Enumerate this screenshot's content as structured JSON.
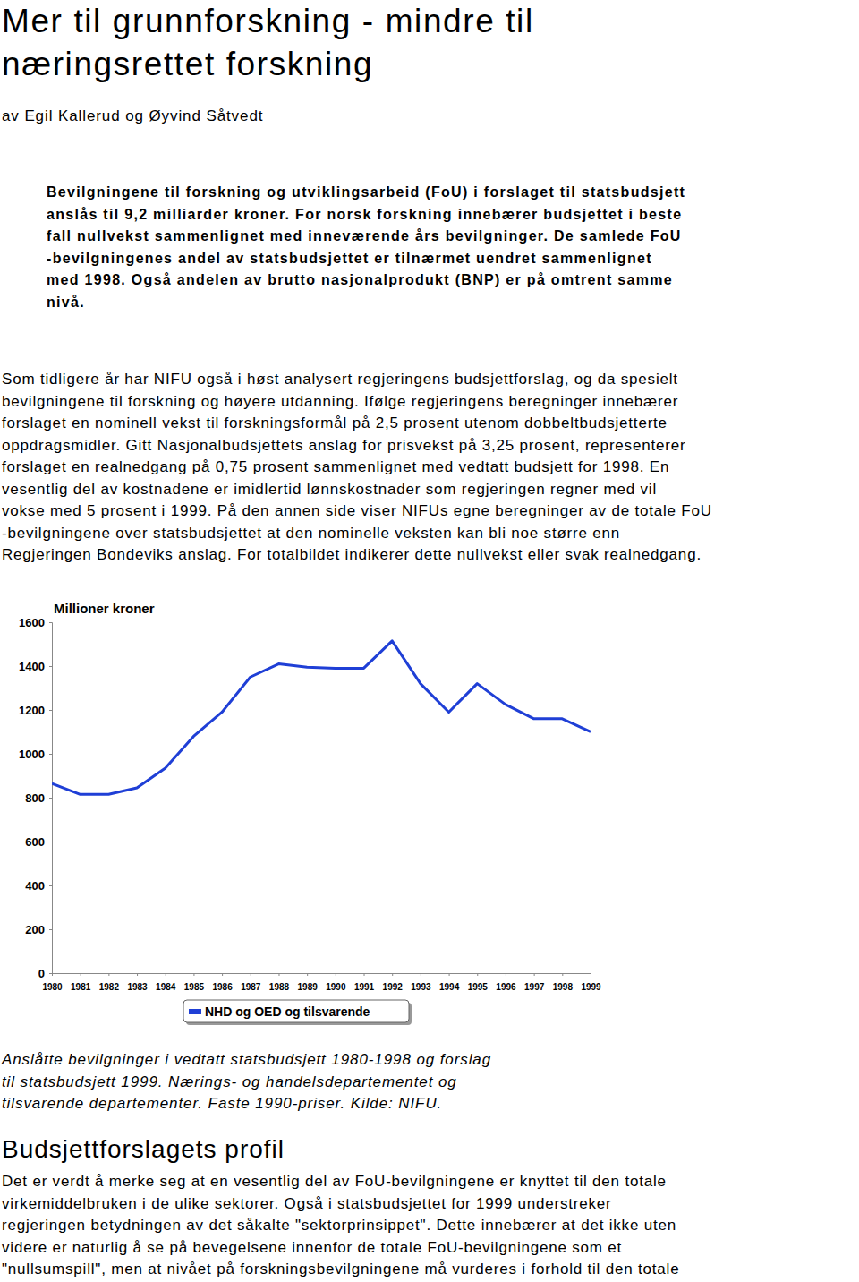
{
  "title_lines": [
    "Mer til grunnforskning - mindre til",
    "næringsrettet forskning"
  ],
  "byline": "av Egil Kallerud og Øyvind Såtvedt",
  "lead_lines": [
    "Bevilgningene til forskning og utviklingsarbeid (FoU) i forslaget til statsbudsjett",
    "anslås til 9,2 milliarder kroner. For norsk forskning innebærer budsjettet i beste",
    "fall nullvekst sammenlignet med inneværende års bevilgninger. De samlede FoU",
    "-bevilgningenes andel av statsbudsjettet er tilnærmet uendret sammenlignet",
    "med 1998. Også andelen av brutto nasjonalprodukt (BNP) er på omtrent samme",
    "nivå."
  ],
  "body_lines": [
    "Som tidligere år har NIFU også i høst analysert regjeringens budsjettforslag, og da spesielt",
    "bevilgningene til forskning og høyere utdanning. Ifølge regjeringens beregninger innebærer",
    "forslaget en nominell vekst til forskningsformål på 2,5 prosent utenom dobbeltbudsjetterte",
    "oppdragsmidler. Gitt Nasjonalbudsjettets anslag for prisvekst på 3,25 prosent, representerer",
    "forslaget en realnedgang på 0,75 prosent sammenlignet med vedtatt budsjett for 1998. En",
    "vesentlig del av kostnadene er imidlertid lønnskostnader som regjeringen regner med vil",
    "vokse med 5 prosent i 1999. På den annen side viser NIFUs egne beregninger av de totale FoU",
    "-bevilgningene over statsbudsjettet at den nominelle veksten kan bli noe større enn",
    "Regjeringen Bondeviks anslag. For totalbildet indikerer dette nullvekst eller svak realnedgang."
  ],
  "chart_data": {
    "type": "line",
    "title": "Millioner kroner",
    "categories": [
      "1980",
      "1981",
      "1982",
      "1983",
      "1984",
      "1985",
      "1986",
      "1987",
      "1988",
      "1989",
      "1990",
      "1991",
      "1992",
      "1993",
      "1994",
      "1995",
      "1996",
      "1997",
      "1998",
      "1999"
    ],
    "series": [
      {
        "name": "NHD og OED og tilsvarende",
        "color": "#1f3fd6",
        "values": [
          865,
          815,
          815,
          845,
          935,
          1080,
          1190,
          1350,
          1410,
          1395,
          1390,
          1390,
          1515,
          1320,
          1190,
          1320,
          1225,
          1160,
          1160,
          1100
        ]
      }
    ],
    "ylim": [
      0,
      1600
    ],
    "yticks": [
      0,
      200,
      400,
      600,
      800,
      1000,
      1200,
      1400,
      1600
    ],
    "grid": false,
    "legend": "bottom"
  },
  "caption_lines": [
    "Anslåtte bevilgninger i vedtatt statsbudsjett 1980-1998 og forslag",
    "til statsbudsjett 1999. Nærings- og handelsdepartementet og",
    "tilsvarende departementer. Faste 1990-priser. Kilde: NIFU."
  ],
  "section_heading": "Budsjettforslagets profil",
  "section_lines": [
    "Det er verdt å merke seg at en vesentlig del av FoU-bevilgningene er knyttet til den totale",
    "virkemiddelbruken i de ulike sektorer. Også i statsbudsjettet for 1999 understreker",
    "regjeringen betydningen av det såkalte \"sektorprinsippet\". Dette innebærer at det ikke uten",
    "videre er naturlig å se på bevegelsene innenfor de totale FoU-bevilgningene som et",
    "\"nullsumspill\", men at nivået på forskningsbevilgningene må vurderes i forhold til den totale"
  ]
}
